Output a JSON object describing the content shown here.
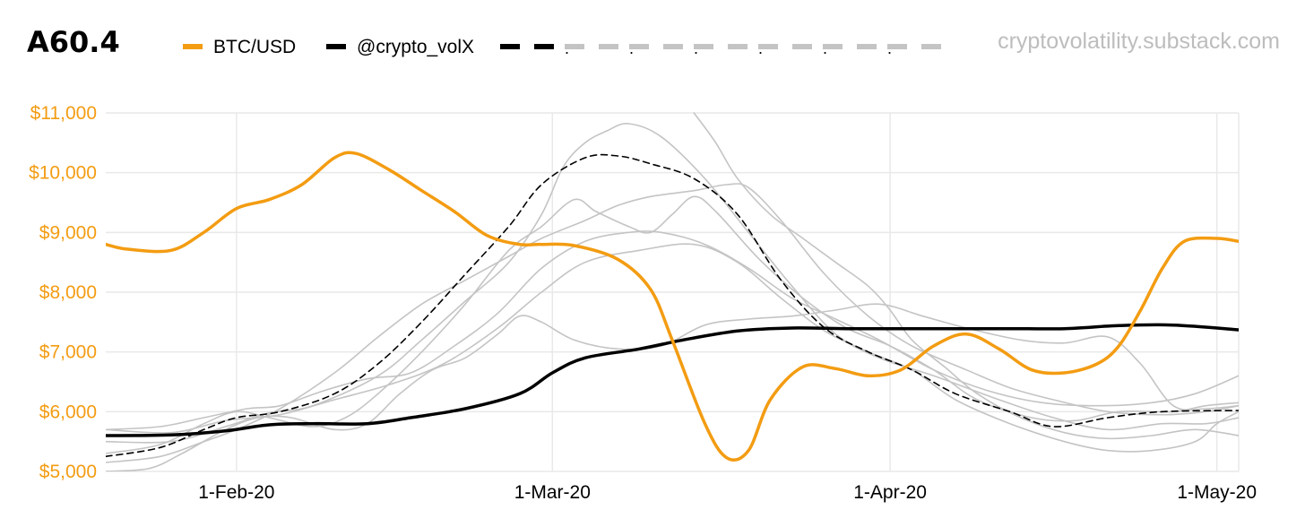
{
  "colors": {
    "btc": "#f39c12",
    "vol": "#000000",
    "grey": "#c4c4c4",
    "grid": "#e9e9e9",
    "source": "#bdbdbd"
  },
  "header": {
    "title": "A60.4",
    "source": "cryptovolatility.substack.com"
  },
  "legend": [
    {
      "label": "BTC/USD",
      "style": "solid",
      "color": "#f39c12"
    },
    {
      "label": "@crypto_volX",
      "style": "solid",
      "color": "#000000"
    },
    {
      "label": ".",
      "style": "dashed",
      "color": "#000000"
    },
    {
      "label": ".",
      "style": "dashed",
      "color": "#c4c4c4"
    },
    {
      "label": ".",
      "style": "dashed",
      "color": "#c4c4c4"
    },
    {
      "label": ".",
      "style": "dashed",
      "color": "#c4c4c4"
    },
    {
      "label": ".",
      "style": "dashed",
      "color": "#c4c4c4"
    },
    {
      "label": ".",
      "style": "dashed",
      "color": "#c4c4c4"
    },
    {
      "label": "",
      "style": "dashed",
      "color": "#c4c4c4"
    }
  ],
  "chart_data": {
    "type": "line",
    "title": "A60.4",
    "xlabel": "",
    "ylabel": "",
    "x_unit": "days since 1-Jan-2020",
    "xlim": [
      19,
      123
    ],
    "ylim": [
      5000,
      11000
    ],
    "y_ticks": [
      5000,
      6000,
      7000,
      8000,
      9000,
      10000,
      11000
    ],
    "y_tick_labels": [
      "$5,000",
      "$6,000",
      "$7,000",
      "$8,000",
      "$9,000",
      "$10,000",
      "$11,000"
    ],
    "x_ticks": [
      31,
      60,
      91,
      121
    ],
    "x_tick_labels": [
      "1-Feb-20",
      "1-Mar-20",
      "1-Apr-20",
      "1-May-20"
    ],
    "grid": true,
    "series": [
      {
        "name": "BTC/USD",
        "color": "#f39c12",
        "style": "solid",
        "width": 3.5,
        "points": [
          [
            19,
            8800
          ],
          [
            21,
            8720
          ],
          [
            25,
            8700
          ],
          [
            28,
            9000
          ],
          [
            31,
            9400
          ],
          [
            34,
            9550
          ],
          [
            37,
            9800
          ],
          [
            40,
            10250
          ],
          [
            42,
            10320
          ],
          [
            45,
            10050
          ],
          [
            48,
            9700
          ],
          [
            51,
            9350
          ],
          [
            54,
            8950
          ],
          [
            57,
            8800
          ],
          [
            59,
            8800
          ],
          [
            62,
            8780
          ],
          [
            66,
            8550
          ],
          [
            69,
            8050
          ],
          [
            71,
            7200
          ],
          [
            74,
            5800
          ],
          [
            76,
            5230
          ],
          [
            78,
            5350
          ],
          [
            80,
            6200
          ],
          [
            83,
            6750
          ],
          [
            86,
            6720
          ],
          [
            89,
            6600
          ],
          [
            92,
            6700
          ],
          [
            95,
            7100
          ],
          [
            98,
            7300
          ],
          [
            101,
            7050
          ],
          [
            104,
            6700
          ],
          [
            107,
            6650
          ],
          [
            110,
            6800
          ],
          [
            112,
            7100
          ],
          [
            114,
            7700
          ],
          [
            116,
            8400
          ],
          [
            118,
            8850
          ],
          [
            121,
            8900
          ],
          [
            123,
            8850
          ]
        ]
      },
      {
        "name": "@crypto_volX",
        "color": "#000000",
        "style": "solid",
        "width": 3.5,
        "points": [
          [
            19,
            5600
          ],
          [
            25,
            5610
          ],
          [
            30,
            5680
          ],
          [
            34,
            5780
          ],
          [
            38,
            5800
          ],
          [
            43,
            5800
          ],
          [
            47,
            5900
          ],
          [
            52,
            6050
          ],
          [
            57,
            6300
          ],
          [
            60,
            6650
          ],
          [
            63,
            6900
          ],
          [
            68,
            7050
          ],
          [
            72,
            7200
          ],
          [
            77,
            7350
          ],
          [
            82,
            7400
          ],
          [
            87,
            7390
          ],
          [
            92,
            7390
          ],
          [
            97,
            7390
          ],
          [
            102,
            7390
          ],
          [
            107,
            7390
          ],
          [
            112,
            7440
          ],
          [
            117,
            7450
          ],
          [
            123,
            7370
          ]
        ]
      },
      {
        "name": ".",
        "color": "#000000",
        "style": "dashed",
        "width": 1.6,
        "points": [
          [
            19,
            5250
          ],
          [
            24,
            5400
          ],
          [
            28,
            5700
          ],
          [
            31,
            5900
          ],
          [
            35,
            6000
          ],
          [
            40,
            6300
          ],
          [
            44,
            6800
          ],
          [
            48,
            7500
          ],
          [
            52,
            8300
          ],
          [
            56,
            9100
          ],
          [
            59,
            9800
          ],
          [
            63,
            10250
          ],
          [
            66,
            10280
          ],
          [
            69,
            10150
          ],
          [
            73,
            9900
          ],
          [
            77,
            9300
          ],
          [
            81,
            8200
          ],
          [
            85,
            7400
          ],
          [
            89,
            7000
          ],
          [
            93,
            6700
          ],
          [
            97,
            6300
          ],
          [
            102,
            6000
          ],
          [
            106,
            5750
          ],
          [
            111,
            5900
          ],
          [
            116,
            6000
          ],
          [
            123,
            6020
          ]
        ]
      },
      {
        "name": ".",
        "color": "#c4c4c4",
        "style": "solid",
        "width": 1.6,
        "points": [
          [
            19,
            5500
          ],
          [
            25,
            5500
          ],
          [
            30,
            5750
          ],
          [
            34,
            5980
          ],
          [
            38,
            6100
          ],
          [
            44,
            6600
          ],
          [
            48,
            7200
          ],
          [
            52,
            7850
          ],
          [
            56,
            8500
          ],
          [
            59,
            9300
          ],
          [
            61,
            10100
          ],
          [
            63,
            10500
          ],
          [
            65,
            10700
          ],
          [
            67,
            10820
          ],
          [
            70,
            10600
          ],
          [
            74,
            9900
          ],
          [
            78,
            9000
          ],
          [
            82,
            8100
          ],
          [
            86,
            7300
          ],
          [
            90,
            6900
          ],
          [
            95,
            6600
          ],
          [
            101,
            6200
          ],
          [
            106,
            5900
          ],
          [
            111,
            5700
          ],
          [
            116,
            5800
          ],
          [
            120,
            5800
          ],
          [
            123,
            5900
          ]
        ]
      },
      {
        "name": ".",
        "color": "#c4c4c4",
        "style": "solid",
        "width": 1.6,
        "points": [
          [
            19,
            5150
          ],
          [
            24,
            5250
          ],
          [
            28,
            5500
          ],
          [
            31,
            5700
          ],
          [
            35,
            6050
          ],
          [
            40,
            6650
          ],
          [
            44,
            7250
          ],
          [
            48,
            7800
          ],
          [
            52,
            8200
          ],
          [
            56,
            8600
          ],
          [
            59,
            8900
          ],
          [
            63,
            9200
          ],
          [
            66,
            9450
          ],
          [
            69,
            9600
          ],
          [
            73,
            9700
          ],
          [
            76,
            9800
          ],
          [
            78,
            9750
          ],
          [
            81,
            9200
          ],
          [
            85,
            8300
          ],
          [
            89,
            7600
          ],
          [
            93,
            7100
          ],
          [
            98,
            6700
          ],
          [
            102,
            6400
          ],
          [
            106,
            6200
          ],
          [
            111,
            6000
          ],
          [
            116,
            5950
          ],
          [
            120,
            6000
          ],
          [
            123,
            6100
          ]
        ]
      },
      {
        "name": ".",
        "color": "#c4c4c4",
        "style": "solid",
        "width": 1.6,
        "points": [
          [
            19,
            5300
          ],
          [
            24,
            5450
          ],
          [
            28,
            5800
          ],
          [
            31,
            6000
          ],
          [
            34,
            5900
          ],
          [
            38,
            5750
          ],
          [
            41,
            5900
          ],
          [
            44,
            6300
          ],
          [
            48,
            7000
          ],
          [
            52,
            7800
          ],
          [
            56,
            8700
          ],
          [
            59,
            9100
          ],
          [
            62,
            9550
          ],
          [
            64,
            9350
          ],
          [
            67,
            9100
          ],
          [
            69,
            9000
          ],
          [
            71,
            9300
          ],
          [
            73,
            9600
          ],
          [
            75,
            9350
          ],
          [
            79,
            8550
          ],
          [
            83,
            7900
          ],
          [
            87,
            7400
          ],
          [
            91,
            7100
          ],
          [
            95,
            6700
          ],
          [
            99,
            6200
          ],
          [
            104,
            5900
          ],
          [
            108,
            5850
          ],
          [
            112,
            6000
          ],
          [
            117,
            6000
          ],
          [
            120,
            6100
          ],
          [
            123,
            6150
          ]
        ]
      },
      {
        "name": ".",
        "color": "#c4c4c4",
        "style": "solid",
        "width": 1.6,
        "points": [
          [
            19,
            5700
          ],
          [
            24,
            5750
          ],
          [
            28,
            5900
          ],
          [
            32,
            6050
          ],
          [
            35,
            6100
          ],
          [
            39,
            6350
          ],
          [
            43,
            6550
          ],
          [
            47,
            6650
          ],
          [
            51,
            7100
          ],
          [
            55,
            7650
          ],
          [
            59,
            8400
          ],
          [
            63,
            8850
          ],
          [
            67,
            9000
          ],
          [
            70,
            9000
          ],
          [
            74,
            8800
          ],
          [
            78,
            8400
          ],
          [
            82,
            7900
          ],
          [
            86,
            7550
          ],
          [
            90,
            7200
          ],
          [
            95,
            6700
          ],
          [
            100,
            6350
          ],
          [
            105,
            6150
          ],
          [
            110,
            6100
          ],
          [
            115,
            6150
          ],
          [
            119,
            6300
          ],
          [
            123,
            6600
          ]
        ]
      },
      {
        "name": ".",
        "color": "#c4c4c4",
        "style": "solid",
        "width": 1.6,
        "points": [
          [
            19,
            5000
          ],
          [
            23,
            5050
          ],
          [
            26,
            5300
          ],
          [
            30,
            5700
          ],
          [
            33,
            5900
          ],
          [
            36,
            5900
          ],
          [
            40,
            5700
          ],
          [
            43,
            5800
          ],
          [
            46,
            6300
          ],
          [
            49,
            6700
          ],
          [
            52,
            6900
          ],
          [
            55,
            7300
          ],
          [
            57,
            7600
          ],
          [
            59,
            7500
          ],
          [
            62,
            7200
          ],
          [
            66,
            7050
          ],
          [
            70,
            7100
          ],
          [
            74,
            7450
          ],
          [
            78,
            7550
          ],
          [
            82,
            7600
          ],
          [
            86,
            7700
          ],
          [
            90,
            7800
          ],
          [
            94,
            7600
          ],
          [
            98,
            7400
          ],
          [
            103,
            7200
          ],
          [
            107,
            7150
          ],
          [
            111,
            7250
          ],
          [
            114,
            6800
          ],
          [
            117,
            6100
          ],
          [
            120,
            6050
          ],
          [
            123,
            6100
          ]
        ]
      },
      {
        "name": ".",
        "color": "#c4c4c4",
        "style": "solid",
        "width": 1.6,
        "points": [
          [
            73,
            11000
          ],
          [
            75,
            10500
          ],
          [
            77,
            9900
          ],
          [
            80,
            9300
          ],
          [
            83,
            8900
          ],
          [
            86,
            8500
          ],
          [
            89,
            8100
          ],
          [
            91,
            7700
          ],
          [
            93,
            7200
          ],
          [
            96,
            6750
          ],
          [
            99,
            6300
          ],
          [
            103,
            5900
          ],
          [
            107,
            5650
          ],
          [
            111,
            5550
          ],
          [
            115,
            5600
          ],
          [
            119,
            5700
          ],
          [
            123,
            5600
          ]
        ]
      },
      {
        "name": "",
        "color": "#c4c4c4",
        "style": "solid",
        "width": 1.6,
        "points": [
          [
            19,
            5700
          ],
          [
            25,
            5650
          ],
          [
            30,
            5850
          ],
          [
            35,
            5950
          ],
          [
            40,
            6200
          ],
          [
            45,
            6450
          ],
          [
            50,
            6800
          ],
          [
            55,
            7400
          ],
          [
            59,
            8000
          ],
          [
            63,
            8500
          ],
          [
            68,
            8700
          ],
          [
            73,
            8800
          ],
          [
            77,
            8500
          ],
          [
            81,
            7900
          ],
          [
            85,
            7350
          ],
          [
            89,
            7000
          ],
          [
            93,
            6700
          ],
          [
            97,
            6200
          ],
          [
            102,
            5800
          ],
          [
            107,
            5500
          ],
          [
            111,
            5350
          ],
          [
            115,
            5350
          ],
          [
            119,
            5500
          ],
          [
            121,
            5800
          ],
          [
            123,
            6000
          ]
        ]
      }
    ]
  }
}
